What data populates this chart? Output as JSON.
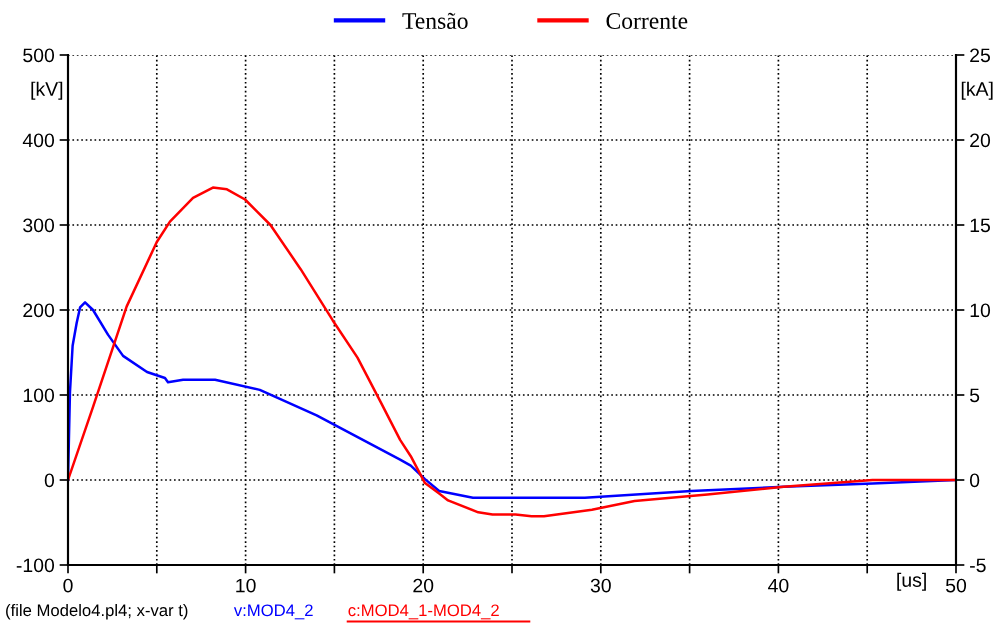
{
  "chart_data": {
    "type": "line",
    "ylabel": "[kV]",
    "y2label": "[kA]",
    "xlabel": "[us]",
    "xlim": [
      0,
      50
    ],
    "xticks": [
      0,
      {
        "value": 5,
        "label": null
      },
      10,
      {
        "value": 15,
        "label": null
      },
      20,
      {
        "value": 25,
        "label": null
      },
      30,
      {
        "value": 35,
        "label": null
      },
      40,
      {
        "value": 45,
        "label": null
      },
      50
    ],
    "ylim": [
      -100,
      500
    ],
    "yticks": [
      -100,
      0,
      100,
      200,
      300,
      400,
      500
    ],
    "y2lim": [
      -5,
      25
    ],
    "y2ticks": [
      -5,
      0,
      5,
      10,
      15,
      20,
      25
    ],
    "grid": true,
    "legend": "top",
    "series": [
      {
        "name": "Tensão",
        "color": "#0000ff",
        "x": [
          0,
          0.11,
          0.26,
          0.49,
          0.68,
          0.96,
          1.41,
          2.25,
          3.1,
          4.45,
          5.46,
          5.63,
          6.48,
          8.28,
          10.8,
          14.0,
          18.7,
          19.3,
          20.1,
          20.9,
          22.8,
          29.1,
          35.1,
          40.3,
          45.3,
          50
        ],
        "values": [
          0,
          103,
          158,
          185,
          203,
          209,
          200,
          171,
          146,
          127,
          120,
          115,
          118,
          118,
          106,
          76,
          24,
          17,
          1,
          -13,
          -21,
          -21,
          -13,
          -8,
          -4,
          0
        ]
      },
      {
        "name": "Corrente",
        "color": "#ff0000",
        "axis": "y2",
        "x": [
          0,
          1.41,
          3.3,
          5.0,
          5.74,
          7.04,
          8.16,
          8.95,
          9.97,
          11.4,
          13.1,
          14.9,
          16.3,
          17.6,
          18.7,
          19.3,
          20.1,
          20.9,
          21.4,
          23.1,
          23.9,
          25.2,
          26.1,
          26.8,
          29.5,
          31.9,
          36.0,
          40.3,
          45.3,
          50
        ],
        "values": [
          0,
          4.3,
          10.2,
          14.0,
          15.2,
          16.6,
          17.2,
          17.1,
          16.5,
          15.0,
          12.4,
          9.4,
          7.2,
          4.6,
          2.36,
          1.4,
          -0.18,
          -0.8,
          -1.2,
          -1.9,
          -2.03,
          -2.03,
          -2.13,
          -2.13,
          -1.75,
          -1.24,
          -0.85,
          -0.4,
          0,
          0
        ]
      }
    ],
    "annotations": [
      "(file Modelo4.pl4; x-var t)",
      "v:MOD4_2",
      "c:MOD4_1-MOD4_2"
    ]
  }
}
